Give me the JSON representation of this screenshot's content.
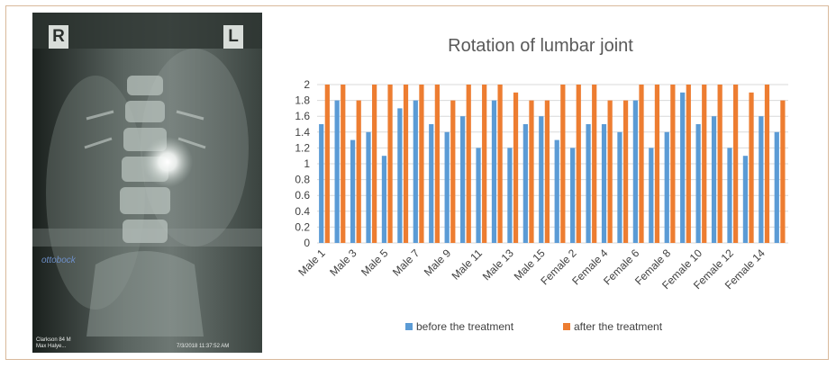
{
  "figure": {
    "xray": {
      "marker_left": "R",
      "marker_right": "L",
      "brand": "ottobock",
      "footer_left_line1": "Clarkson 84 M",
      "footer_left_line2": "Max Halye...",
      "footer_right": "7/3/2018 11:37:52 AM"
    }
  },
  "chart_data": {
    "type": "bar",
    "title": "Rotation of lumbar joint",
    "xlabel": "",
    "ylabel": "",
    "ylim": [
      0,
      2
    ],
    "yticks": [
      0,
      0.2,
      0.4,
      0.6,
      0.8,
      1,
      1.2,
      1.4,
      1.6,
      1.8,
      2
    ],
    "ytick_labels": [
      "0",
      "0.2",
      "0.4",
      "0.6",
      "0.8",
      "1",
      "1.2",
      "1.4",
      "1.6",
      "1.8",
      "2"
    ],
    "grid": true,
    "legend": "bottom",
    "categories": [
      "Male 1",
      "Male 2",
      "Male 3",
      "Male 4",
      "Male 5",
      "Male 6",
      "Male 7",
      "Male 8",
      "Male 9",
      "Male 10",
      "Male 11",
      "Male 12",
      "Male 13",
      "Male 14",
      "Male 15",
      "Female 1",
      "Female 2",
      "Female 3",
      "Female 4",
      "Female 5",
      "Female 6",
      "Female 7",
      "Female 8",
      "Female 9",
      "Female 10",
      "Female 11",
      "Female 12",
      "Female 13",
      "Female 14",
      "Female 15"
    ],
    "xtick_labels": [
      "Male 1",
      "Male 3",
      "Male 5",
      "Male 7",
      "Male 9",
      "Male 11",
      "Male 13",
      "Male 15",
      "Female 2",
      "Female 4",
      "Female 6",
      "Female 8",
      "Female 10",
      "Female 12",
      "Female 14"
    ],
    "xtick_indices": [
      0,
      2,
      4,
      6,
      8,
      10,
      12,
      14,
      16,
      18,
      20,
      22,
      24,
      26,
      28
    ],
    "series": [
      {
        "name": "before the treatment",
        "color": "#5b9bd5",
        "values": [
          1.5,
          1.8,
          1.3,
          1.4,
          1.1,
          1.7,
          1.8,
          1.5,
          1.4,
          1.6,
          1.2,
          1.8,
          1.2,
          1.5,
          1.6,
          1.3,
          1.2,
          1.5,
          1.5,
          1.4,
          1.8,
          1.2,
          1.4,
          1.9,
          1.5,
          1.6,
          1.2,
          1.1,
          1.6,
          1.4
        ]
      },
      {
        "name": "after the treatment",
        "color": "#ed7d31",
        "values": [
          2,
          2,
          1.8,
          2,
          2,
          2,
          2,
          2,
          1.8,
          2,
          2,
          2,
          1.9,
          1.8,
          1.8,
          2,
          2,
          2,
          1.8,
          1.8,
          2,
          2,
          2,
          2,
          2,
          2,
          2,
          1.9,
          2,
          1.8
        ]
      }
    ]
  }
}
